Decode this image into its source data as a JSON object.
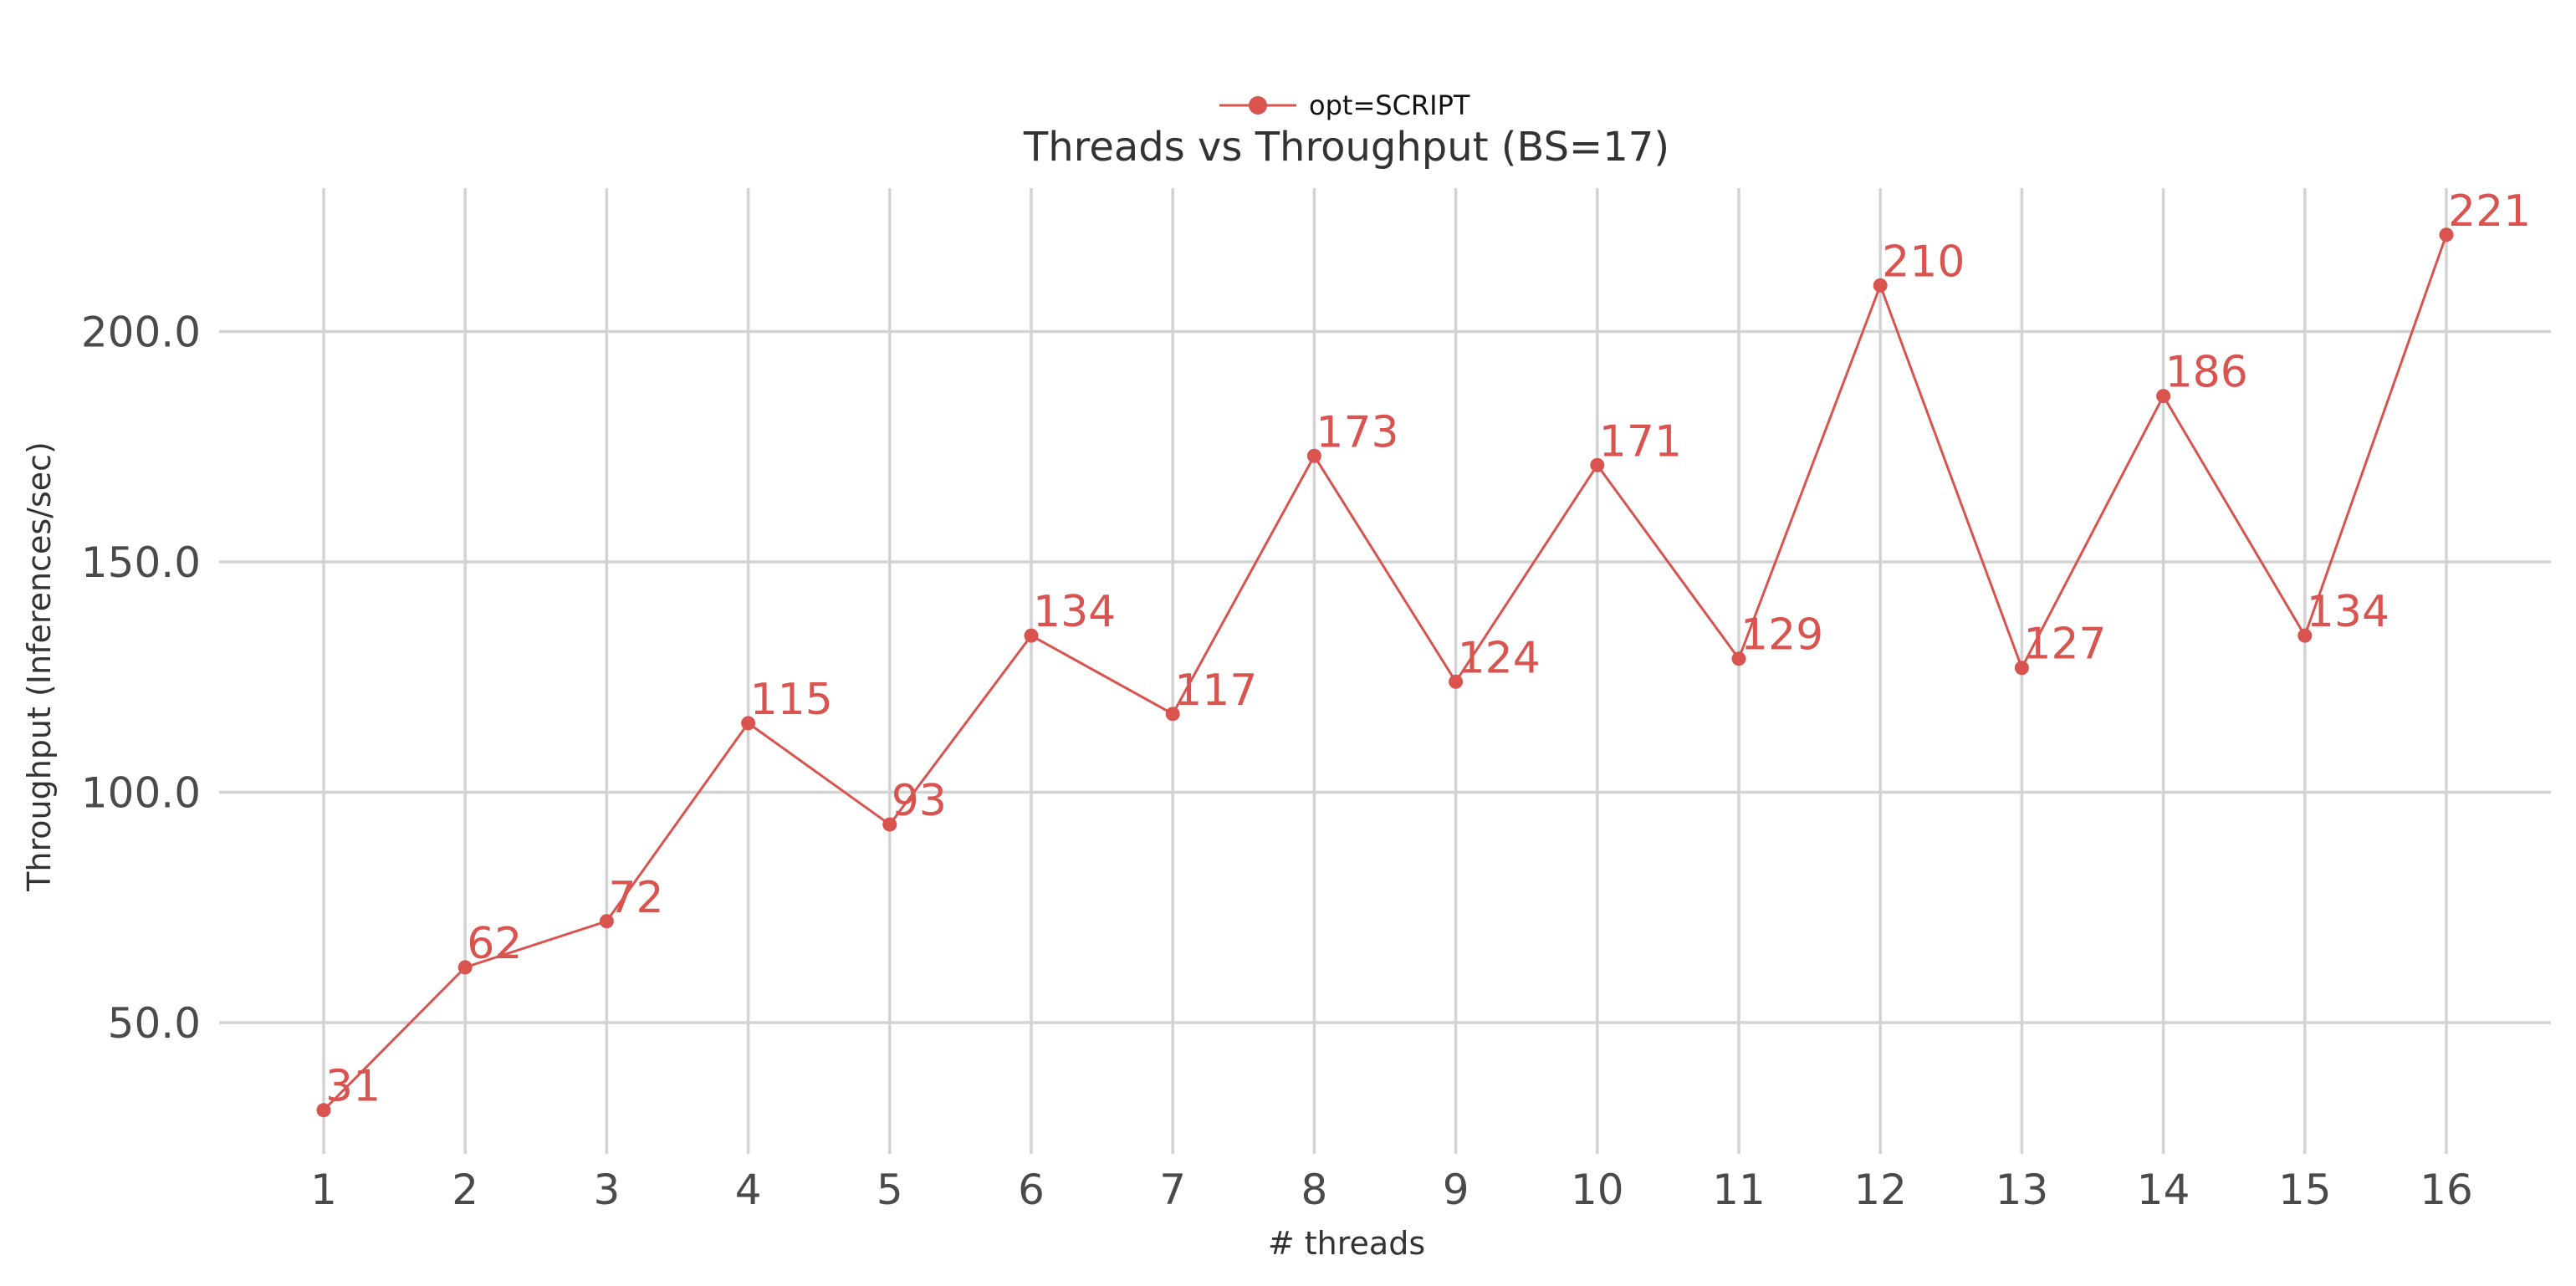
{
  "chart_data": {
    "type": "line",
    "title": "Threads vs Throughput (BS=17)",
    "xlabel": "# threads",
    "ylabel": "Throughput (Inferences/sec)",
    "x": [
      1,
      2,
      3,
      4,
      5,
      6,
      7,
      8,
      9,
      10,
      11,
      12,
      13,
      14,
      15,
      16
    ],
    "x_tick_labels": [
      "1",
      "2",
      "3",
      "4",
      "5",
      "6",
      "7",
      "8",
      "9",
      "10",
      "11",
      "12",
      "13",
      "14",
      "15",
      "16"
    ],
    "y_ticks": [
      50,
      100,
      150,
      200
    ],
    "y_tick_labels": [
      "50.0",
      "100.0",
      "150.0",
      "200.0"
    ],
    "ylim": [
      19,
      231
    ],
    "xlim": [
      0.55,
      16.75
    ],
    "grid": true,
    "legend_position": "top-center",
    "series": [
      {
        "name": "opt=SCRIPT",
        "color": "#d9534f",
        "marker": "circle",
        "values": [
          31,
          62,
          72,
          115,
          93,
          134,
          117,
          173,
          124,
          171,
          129,
          210,
          127,
          186,
          134,
          221
        ],
        "labels": [
          "31",
          "62",
          "72",
          "115",
          "93",
          "134",
          "117",
          "173",
          "124",
          "171",
          "129",
          "210",
          "127",
          "186",
          "134",
          "221"
        ]
      }
    ]
  }
}
